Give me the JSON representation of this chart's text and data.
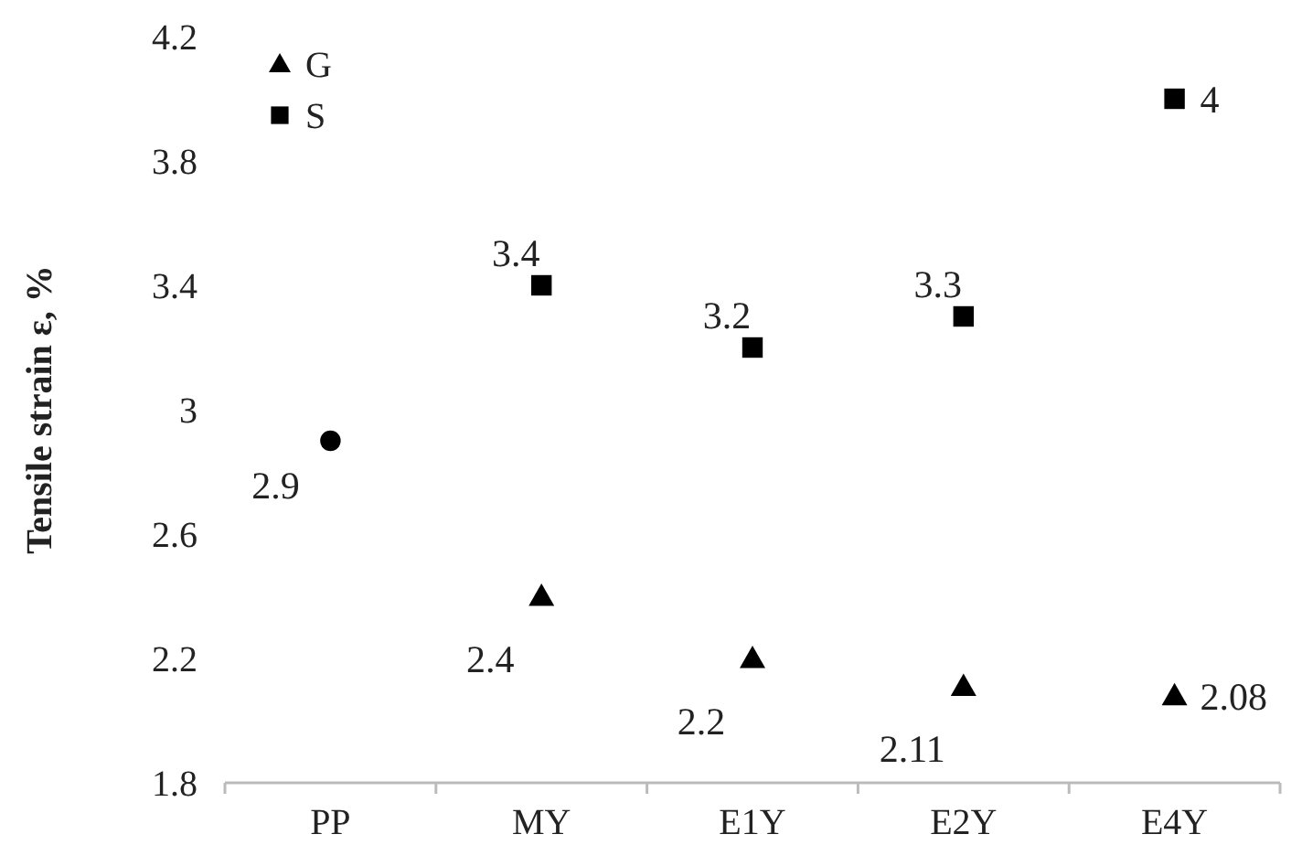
{
  "chart_data": {
    "type": "scatter",
    "ylabel": "Tensile strain ε, %",
    "categories": [
      "PP",
      "MY",
      "E1Y",
      "E2Y",
      "E4Y"
    ],
    "series": [
      {
        "name": "G",
        "color": "#000000",
        "marker": "triangle",
        "values": [
          null,
          2.4,
          2.2,
          2.11,
          2.08
        ]
      },
      {
        "name": "S",
        "color": "#000000",
        "marker": "square",
        "values": [
          null,
          3.4,
          3.2,
          3.3,
          4
        ]
      },
      {
        "color": "#000000",
        "marker": "circle",
        "values": [
          2.9,
          null,
          null,
          null,
          null
        ]
      }
    ],
    "ylim": [
      1.8,
      4.2
    ],
    "yticks": [
      1.8,
      2.2,
      2.6,
      3,
      3.4,
      3.8,
      4.2
    ],
    "grid": false,
    "legend": "top left",
    "data_labels": true
  }
}
